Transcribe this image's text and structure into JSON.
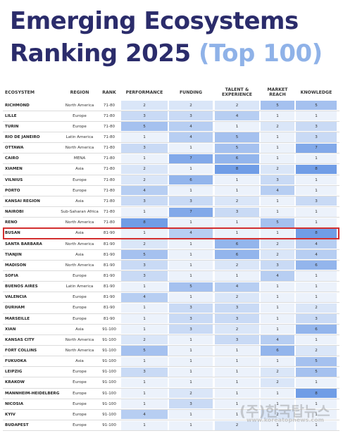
{
  "title_line1": "Emerging Ecosystems",
  "title_line2": "Ranking 2025",
  "title_highlight": "(Top 100)",
  "table": {
    "headers": [
      "ECOSYSTEM",
      "REGION",
      "RANK",
      "PERFORMANCE",
      "FUNDING",
      "TALENT & EXPERIENCE",
      "MARKET REACH",
      "KNOWLEDGE"
    ],
    "rows": [
      {
        "cells": [
          "RICHMOND",
          "North America",
          "71-80",
          2,
          2,
          2,
          5,
          5
        ]
      },
      {
        "cells": [
          "LILLE",
          "Europe",
          "71-80",
          3,
          3,
          4,
          1,
          1
        ]
      },
      {
        "cells": [
          "TURIN",
          "Europe",
          "71-80",
          5,
          4,
          1,
          2,
          3
        ]
      },
      {
        "cells": [
          "RIO DE JANEIRO",
          "Latin America",
          "71-80",
          1,
          4,
          5,
          1,
          3
        ]
      },
      {
        "cells": [
          "OTTAWA",
          "North America",
          "71-80",
          3,
          1,
          5,
          1,
          7
        ]
      },
      {
        "cells": [
          "CAIRO",
          "MENA",
          "71-80",
          1,
          7,
          6,
          1,
          1
        ]
      },
      {
        "cells": [
          "XIAMEN",
          "Asia",
          "71-80",
          2,
          1,
          8,
          2,
          8
        ]
      },
      {
        "cells": [
          "VILNIUS",
          "Europe",
          "71-80",
          2,
          6,
          1,
          3,
          1
        ]
      },
      {
        "cells": [
          "PORTO",
          "Europe",
          "71-80",
          4,
          1,
          1,
          4,
          1
        ]
      },
      {
        "cells": [
          "KANSAI REGION",
          "Asia",
          "71-80",
          3,
          3,
          2,
          1,
          3
        ]
      },
      {
        "cells": [
          "NAIROBI",
          "Sub-Saharan Africa",
          "71-80",
          1,
          7,
          3,
          1,
          1
        ]
      },
      {
        "cells": [
          "RENO",
          "North America",
          "71-80",
          8,
          1,
          1,
          5,
          1
        ]
      },
      {
        "cells": [
          "BUSAN",
          "Asia",
          "81-90",
          1,
          4,
          1,
          1,
          8
        ],
        "highlight": true
      },
      {
        "cells": [
          "SANTA BARBARA",
          "North America",
          "81-90",
          2,
          1,
          6,
          2,
          4
        ]
      },
      {
        "cells": [
          "TIANJIN",
          "Asia",
          "81-90",
          5,
          1,
          6,
          2,
          4
        ]
      },
      {
        "cells": [
          "MADISON",
          "North America",
          "81-90",
          3,
          1,
          2,
          3,
          6
        ]
      },
      {
        "cells": [
          "SOFIA",
          "Europe",
          "81-90",
          3,
          1,
          1,
          4,
          1
        ]
      },
      {
        "cells": [
          "BUENOS AIRES",
          "Latin America",
          "81-90",
          1,
          5,
          4,
          1,
          1
        ]
      },
      {
        "cells": [
          "VALENCIA",
          "Europe",
          "81-90",
          4,
          1,
          2,
          1,
          1
        ]
      },
      {
        "cells": [
          "DURHAM",
          "Europe",
          "81-90",
          1,
          3,
          3,
          1,
          2
        ]
      },
      {
        "cells": [
          "MARSEILLE",
          "Europe",
          "81-90",
          1,
          3,
          3,
          1,
          3
        ]
      },
      {
        "cells": [
          "XIAN",
          "Asia",
          "91-100",
          1,
          3,
          2,
          1,
          6
        ]
      },
      {
        "cells": [
          "KANSAS CITY",
          "North America",
          "91-100",
          2,
          1,
          3,
          4,
          1
        ]
      },
      {
        "cells": [
          "FORT COLLINS",
          "North America",
          "91-100",
          5,
          1,
          1,
          6,
          2
        ]
      },
      {
        "cells": [
          "FUKUOKA",
          "Asia",
          "91-100",
          1,
          1,
          1,
          1,
          5
        ]
      },
      {
        "cells": [
          "LEIPZIG",
          "Europe",
          "91-100",
          3,
          1,
          1,
          2,
          5
        ]
      },
      {
        "cells": [
          "KRAKOW",
          "Europe",
          "91-100",
          1,
          1,
          1,
          2,
          1
        ]
      },
      {
        "cells": [
          "MANNHEIM-HEIDELBERG",
          "Europe",
          "91-100",
          1,
          2,
          1,
          1,
          8
        ]
      },
      {
        "cells": [
          "NICOSIA",
          "Europe",
          "91-100",
          1,
          3,
          1,
          1,
          1
        ]
      },
      {
        "cells": [
          "KYIV",
          "Europe",
          "91-100",
          4,
          1,
          1,
          2,
          1
        ]
      },
      {
        "cells": [
          "BUDAPEST",
          "Europe",
          "91-100",
          1,
          1,
          2,
          1,
          1
        ]
      }
    ]
  },
  "watermark": "(주)한국탑뉴스",
  "watermark_url": "www.koreatopnews.com"
}
